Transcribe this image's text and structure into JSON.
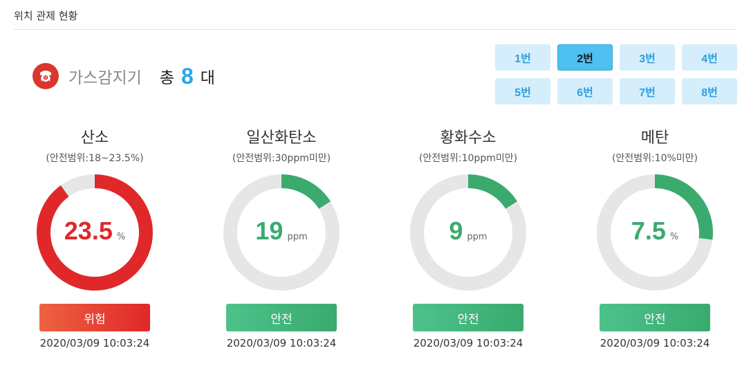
{
  "page": {
    "title": "위치 관제 현황"
  },
  "device": {
    "name": "가스감지기",
    "icon": "gas-mask-icon",
    "total_label": "총",
    "total_count": "8",
    "total_unit": "대"
  },
  "units": {
    "selected": "2번",
    "items": [
      {
        "label": "1번"
      },
      {
        "label": "2번"
      },
      {
        "label": "3번"
      },
      {
        "label": "4번"
      },
      {
        "label": "5번"
      },
      {
        "label": "6번"
      },
      {
        "label": "7번"
      },
      {
        "label": "8번"
      }
    ]
  },
  "colors": {
    "danger": "#e0282a",
    "danger_light": "#ec6240",
    "safe": "#3aaa6e",
    "safe_light": "#4cc28a",
    "track": "#e6e6e6",
    "accent": "#2aa6e8"
  },
  "gauges": [
    {
      "name": "산소",
      "range": "(안전범위:18~23.5%)",
      "value": "23.5",
      "unit": "%",
      "level": 0.9,
      "state": "danger",
      "status": "위험",
      "time": "2020/03/09 10:03:24"
    },
    {
      "name": "일산화탄소",
      "range": "(안전범위:30ppm미만)",
      "value": "19",
      "unit": "ppm",
      "level": 0.16,
      "state": "safe",
      "status": "안전",
      "time": "2020/03/09 10:03:24"
    },
    {
      "name": "황화수소",
      "range": "(안전범위:10ppm미만)",
      "value": "9",
      "unit": "ppm",
      "level": 0.16,
      "state": "safe",
      "status": "안전",
      "time": "2020/03/09 10:03:24"
    },
    {
      "name": "메탄",
      "range": "(안전범위:10%미만)",
      "value": "7.5",
      "unit": "%",
      "level": 0.27,
      "state": "safe",
      "status": "안전",
      "time": "2020/03/09 10:03:24"
    }
  ]
}
